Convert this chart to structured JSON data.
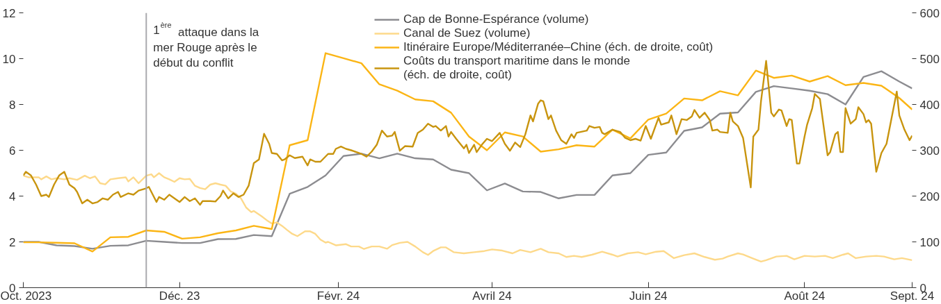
{
  "chart_data": {
    "type": "line",
    "xlim": [
      "2023-10-01",
      "2024-09-12"
    ],
    "xticks": [
      {
        "value": "2023-10-01",
        "label": "Oct. 2023"
      },
      {
        "value": "2023-12-01",
        "label": "Déc. 23"
      },
      {
        "value": "2024-02-01",
        "label": "Févr. 24"
      },
      {
        "value": "2024-04-01",
        "label": "Avril 24"
      },
      {
        "value": "2024-06-01",
        "label": "Juin 24"
      },
      {
        "value": "2024-08-01",
        "label": "Août 24"
      },
      {
        "value": "2024-09-12",
        "label": "Sept. 24"
      }
    ],
    "ylim": [
      0,
      12
    ],
    "yticks": [
      0,
      2,
      4,
      6,
      8,
      10,
      12
    ],
    "y2lim": [
      0,
      600
    ],
    "y2ticks": [
      0,
      100,
      200,
      300,
      400,
      500,
      600
    ],
    "grid": false,
    "legend": "top",
    "line_style": "solid",
    "ref_lines": [
      {
        "axis": "x",
        "value": "2023-11-18",
        "label": "1$^{ère}$ attaque dans la\nmer Rouge après le\ndébut du conflit",
        "color": "#a9a9ad"
      }
    ],
    "series": [
      {
        "name": "Cap de Bonne-Espérance (volume)",
        "color": "#8c8c90",
        "x": [
          "2023-10-01",
          "2023-10-07",
          "2023-10-14",
          "2023-10-21",
          "2023-10-28",
          "2023-11-04",
          "2023-11-11",
          "2023-11-18",
          "2023-11-25",
          "2023-12-02",
          "2023-12-09",
          "2023-12-16",
          "2023-12-23",
          "2023-12-30",
          "2024-01-06",
          "2024-01-13",
          "2024-01-20",
          "2024-01-27",
          "2024-02-03",
          "2024-02-10",
          "2024-02-17",
          "2024-02-24",
          "2024-03-02",
          "2024-03-09",
          "2024-03-16",
          "2024-03-23",
          "2024-03-30",
          "2024-04-06",
          "2024-04-13",
          "2024-04-20",
          "2024-04-27",
          "2024-05-04",
          "2024-05-11",
          "2024-05-18",
          "2024-05-25",
          "2024-06-01",
          "2024-06-08",
          "2024-06-15",
          "2024-06-22",
          "2024-06-29",
          "2024-07-06",
          "2024-07-13",
          "2024-07-20",
          "2024-07-27",
          "2024-08-03",
          "2024-08-10",
          "2024-08-17",
          "2024-08-24",
          "2024-08-31",
          "2024-09-07",
          "2024-09-12"
        ],
        "values": [
          2.0,
          2.0,
          1.85,
          1.82,
          1.7,
          1.83,
          1.85,
          2.05,
          2.0,
          1.95,
          1.95,
          2.12,
          2.13,
          2.3,
          2.25,
          4.1,
          4.4,
          4.9,
          5.75,
          5.85,
          5.65,
          5.85,
          5.65,
          5.6,
          5.15,
          5.0,
          4.25,
          4.55,
          4.2,
          4.18,
          3.9,
          4.05,
          4.05,
          4.9,
          5.0,
          5.8,
          5.9,
          6.85,
          7.0,
          7.6,
          7.65,
          8.55,
          8.8,
          8.7,
          8.6,
          8.45,
          8.0,
          9.2,
          9.45,
          9.0,
          8.7
        ]
      },
      {
        "name": "Canal de Suez (volume)",
        "color": "#fdd98a",
        "x": [
          "2023-10-01",
          "2023-10-03",
          "2023-10-07",
          "2023-10-08",
          "2023-10-10",
          "2023-10-12",
          "2023-10-14",
          "2023-10-17",
          "2023-10-19",
          "2023-10-22",
          "2023-10-25",
          "2023-10-27",
          "2023-10-29",
          "2023-10-31",
          "2023-11-02",
          "2023-11-04",
          "2023-11-07",
          "2023-11-10",
          "2023-11-11",
          "2023-11-13",
          "2023-11-15",
          "2023-11-18",
          "2023-11-20",
          "2023-11-21",
          "2023-11-23",
          "2023-11-25",
          "2023-11-27",
          "2023-11-29",
          "2023-12-01",
          "2023-12-03",
          "2023-12-05",
          "2023-12-07",
          "2023-12-09",
          "2023-12-11",
          "2023-12-13",
          "2023-12-15",
          "2023-12-17",
          "2023-12-19",
          "2023-12-21",
          "2023-12-23",
          "2023-12-25",
          "2023-12-27",
          "2023-12-29",
          "2023-12-30",
          "2024-01-02",
          "2024-01-04",
          "2024-01-06",
          "2024-01-08",
          "2024-01-10",
          "2024-01-12",
          "2024-01-14",
          "2024-01-16",
          "2024-01-19",
          "2024-01-21",
          "2024-01-23",
          "2024-01-25",
          "2024-01-27",
          "2024-01-28",
          "2024-01-31",
          "2024-02-04",
          "2024-02-06",
          "2024-02-09",
          "2024-02-11",
          "2024-02-14",
          "2024-02-17",
          "2024-02-20",
          "2024-02-22",
          "2024-02-25",
          "2024-02-28",
          "2024-03-02",
          "2024-03-05",
          "2024-03-07",
          "2024-03-09",
          "2024-03-12",
          "2024-03-14",
          "2024-03-17",
          "2024-03-21",
          "2024-03-25",
          "2024-03-29",
          "2024-04-01",
          "2024-04-05",
          "2024-04-09",
          "2024-04-12",
          "2024-04-16",
          "2024-04-20",
          "2024-04-23",
          "2024-04-27",
          "2024-04-30",
          "2024-05-03",
          "2024-05-06",
          "2024-05-10",
          "2024-05-14",
          "2024-05-18",
          "2024-05-20",
          "2024-05-24",
          "2024-05-28",
          "2024-05-31",
          "2024-06-04",
          "2024-06-07",
          "2024-06-11",
          "2024-06-15",
          "2024-06-19",
          "2024-06-23",
          "2024-06-27",
          "2024-06-30",
          "2024-07-02",
          "2024-07-06",
          "2024-07-08",
          "2024-07-12",
          "2024-07-15",
          "2024-07-17",
          "2024-07-21",
          "2024-07-25",
          "2024-07-28",
          "2024-08-01",
          "2024-08-05",
          "2024-08-09",
          "2024-08-12",
          "2024-08-16",
          "2024-08-18",
          "2024-08-21",
          "2024-08-25",
          "2024-08-29",
          "2024-09-01",
          "2024-09-05",
          "2024-09-08",
          "2024-09-12"
        ],
        "values": [
          4.89,
          4.82,
          4.82,
          4.73,
          4.86,
          4.73,
          4.78,
          4.73,
          4.78,
          4.71,
          4.89,
          4.78,
          4.86,
          4.56,
          4.51,
          4.73,
          4.78,
          4.82,
          4.64,
          4.82,
          4.56,
          4.89,
          4.95,
          4.82,
          5.0,
          4.82,
          4.73,
          4.62,
          4.78,
          4.73,
          4.75,
          4.45,
          4.35,
          4.3,
          4.5,
          4.56,
          4.5,
          4.45,
          4.2,
          4.1,
          3.9,
          3.5,
          3.3,
          3.35,
          3.12,
          2.95,
          2.8,
          2.85,
          2.7,
          2.52,
          2.35,
          2.25,
          2.46,
          2.46,
          2.35,
          2.1,
          1.97,
          2.0,
          1.85,
          1.9,
          1.8,
          1.8,
          1.69,
          1.8,
          1.8,
          1.7,
          1.86,
          1.96,
          2.0,
          1.8,
          1.55,
          1.43,
          1.6,
          1.76,
          1.76,
          1.55,
          1.5,
          1.55,
          1.6,
          1.67,
          1.62,
          1.5,
          1.65,
          1.55,
          1.7,
          1.55,
          1.5,
          1.34,
          1.39,
          1.34,
          1.44,
          1.57,
          1.44,
          1.36,
          1.5,
          1.55,
          1.46,
          1.57,
          1.6,
          1.29,
          1.42,
          1.5,
          1.34,
          1.22,
          1.27,
          1.36,
          1.5,
          1.45,
          1.27,
          1.14,
          1.2,
          1.36,
          1.39,
          1.24,
          1.39,
          1.36,
          1.39,
          1.29,
          1.44,
          1.5,
          1.29,
          1.36,
          1.39,
          1.36,
          1.24,
          1.29,
          1.2
        ]
      },
      {
        "name": "Itinéraire Europe/Méditerranée–Chine (éch. de droite, coût)",
        "color": "#fbb515",
        "axis": "y2",
        "x": [
          "2023-10-01",
          "2023-10-07",
          "2023-10-14",
          "2023-10-21",
          "2023-10-28",
          "2023-11-04",
          "2023-11-11",
          "2023-11-18",
          "2023-11-25",
          "2023-12-02",
          "2023-12-09",
          "2023-12-16",
          "2023-12-23",
          "2023-12-30",
          "2024-01-06",
          "2024-01-13",
          "2024-01-20",
          "2024-01-27",
          "2024-02-03",
          "2024-02-10",
          "2024-02-17",
          "2024-02-24",
          "2024-03-02",
          "2024-03-09",
          "2024-03-16",
          "2024-03-23",
          "2024-03-30",
          "2024-04-06",
          "2024-04-13",
          "2024-04-20",
          "2024-04-27",
          "2024-05-04",
          "2024-05-11",
          "2024-05-18",
          "2024-05-25",
          "2024-06-01",
          "2024-06-08",
          "2024-06-15",
          "2024-06-22",
          "2024-06-29",
          "2024-07-06",
          "2024-07-13",
          "2024-07-20",
          "2024-07-27",
          "2024-08-03",
          "2024-08-10",
          "2024-08-17",
          "2024-08-24",
          "2024-08-31",
          "2024-09-07",
          "2024-09-12"
        ],
        "values": [
          99,
          99,
          98,
          97,
          79,
          110,
          111,
          125,
          122,
          107,
          110,
          119,
          125,
          135,
          128,
          311,
          322,
          512,
          501,
          490,
          444,
          430,
          411,
          407,
          382,
          330,
          300,
          339,
          330,
          297,
          302,
          311,
          308,
          345,
          326,
          367,
          380,
          413,
          409,
          429,
          420,
          474,
          458,
          463,
          450,
          462,
          442,
          447,
          441,
          414,
          389
        ]
      },
      {
        "name": "Coûts du transport maritime dans le monde\n(éch. de droite, coût)",
        "color": "#c8940e",
        "axis": "y2",
        "x": [
          "2023-10-01",
          "2023-10-02",
          "2023-10-04",
          "2023-10-06",
          "2023-10-08",
          "2023-10-10",
          "2023-10-11",
          "2023-10-13",
          "2023-10-15",
          "2023-10-17",
          "2023-10-19",
          "2023-10-21",
          "2023-10-22",
          "2023-10-24",
          "2023-10-26",
          "2023-10-28",
          "2023-10-30",
          "2023-11-01",
          "2023-11-03",
          "2023-11-05",
          "2023-11-07",
          "2023-11-08",
          "2023-11-11",
          "2023-11-13",
          "2023-11-15",
          "2023-11-18",
          "2023-11-19",
          "2023-11-20",
          "2023-11-22",
          "2023-11-23",
          "2023-11-25",
          "2023-11-27",
          "2023-11-29",
          "2023-12-01",
          "2023-12-03",
          "2023-12-05",
          "2023-12-07",
          "2023-12-09",
          "2023-12-10",
          "2023-12-13",
          "2023-12-15",
          "2023-12-17",
          "2023-12-18",
          "2023-12-20",
          "2023-12-22",
          "2023-12-24",
          "2023-12-26",
          "2023-12-28",
          "2023-12-30",
          "2024-01-01",
          "2024-01-02",
          "2024-01-03",
          "2024-01-05",
          "2024-01-06",
          "2024-01-08",
          "2024-01-10",
          "2024-01-11",
          "2024-01-13",
          "2024-01-15",
          "2024-01-18",
          "2024-01-20",
          "2024-01-21",
          "2024-01-23",
          "2024-01-25",
          "2024-01-28",
          "2024-01-30",
          "2024-01-31",
          "2024-02-02",
          "2024-02-04",
          "2024-02-06",
          "2024-02-09",
          "2024-02-10",
          "2024-02-12",
          "2024-02-14",
          "2024-02-16",
          "2024-02-18",
          "2024-02-20",
          "2024-02-22",
          "2024-02-23",
          "2024-02-25",
          "2024-02-27",
          "2024-03-01",
          "2024-03-03",
          "2024-03-05",
          "2024-03-07",
          "2024-03-09",
          "2024-03-10",
          "2024-03-12",
          "2024-03-14",
          "2024-03-15",
          "2024-03-16",
          "2024-03-18",
          "2024-03-21",
          "2024-03-22",
          "2024-03-23",
          "2024-03-25",
          "2024-03-26",
          "2024-03-28",
          "2024-03-30",
          "2024-04-01",
          "2024-04-04",
          "2024-04-06",
          "2024-04-08",
          "2024-04-10",
          "2024-04-12",
          "2024-04-14",
          "2024-04-16",
          "2024-04-17",
          "2024-04-19",
          "2024-04-20",
          "2024-04-21",
          "2024-04-23",
          "2024-04-24",
          "2024-04-26",
          "2024-04-28",
          "2024-04-30",
          "2024-05-02",
          "2024-05-03",
          "2024-05-04",
          "2024-05-08",
          "2024-05-09",
          "2024-05-11",
          "2024-05-13",
          "2024-05-14",
          "2024-05-15",
          "2024-05-18",
          "2024-05-21",
          "2024-05-23",
          "2024-05-25",
          "2024-05-27",
          "2024-05-29",
          "2024-05-31",
          "2024-06-02",
          "2024-06-05",
          "2024-06-06",
          "2024-06-09",
          "2024-06-10",
          "2024-06-11",
          "2024-06-12",
          "2024-06-14",
          "2024-06-16",
          "2024-06-18",
          "2024-06-19",
          "2024-06-21",
          "2024-06-23",
          "2024-06-25",
          "2024-06-26",
          "2024-06-28",
          "2024-06-29",
          "2024-07-02",
          "2024-07-03",
          "2024-07-04",
          "2024-07-06",
          "2024-07-08",
          "2024-07-11",
          "2024-07-12",
          "2024-07-14",
          "2024-07-15",
          "2024-07-17",
          "2024-07-19",
          "2024-07-20",
          "2024-07-22",
          "2024-07-23",
          "2024-07-25",
          "2024-07-26",
          "2024-07-27",
          "2024-07-29",
          "2024-07-30",
          "2024-08-01",
          "2024-08-02",
          "2024-08-04",
          "2024-08-05",
          "2024-08-07",
          "2024-08-10",
          "2024-08-11",
          "2024-08-13",
          "2024-08-14",
          "2024-08-15",
          "2024-08-16",
          "2024-08-17",
          "2024-08-19",
          "2024-08-21",
          "2024-08-22",
          "2024-08-24",
          "2024-08-25",
          "2024-08-26",
          "2024-08-27",
          "2024-08-29",
          "2024-08-31",
          "2024-09-02",
          "2024-09-06",
          "2024-09-07",
          "2024-09-09",
          "2024-09-11",
          "2024-09-12"
        ],
        "values": [
          245,
          253,
          245,
          225,
          200,
          203,
          198,
          225,
          245,
          253,
          225,
          217,
          209,
          184,
          192,
          184,
          187,
          195,
          192,
          203,
          209,
          198,
          206,
          203,
          212,
          217,
          220,
          209,
          187,
          198,
          192,
          203,
          195,
          187,
          198,
          189,
          195,
          181,
          189,
          189,
          188,
          200,
          212,
          195,
          206,
          198,
          203,
          223,
          272,
          280,
          308,
          336,
          314,
          294,
          292,
          278,
          280,
          289,
          283,
          286,
          267,
          280,
          275,
          275,
          292,
          292,
          303,
          308,
          303,
          300,
          294,
          292,
          286,
          297,
          312,
          343,
          330,
          332,
          340,
          299,
          309,
          308,
          338,
          345,
          358,
          351,
          353,
          343,
          353,
          330,
          340,
          325,
          304,
          312,
          294,
          312,
          296,
          312,
          325,
          320,
          338,
          314,
          299,
          317,
          307,
          335,
          376,
          363,
          402,
          409,
          407,
          368,
          376,
          343,
          322,
          314,
          335,
          327,
          338,
          343,
          353,
          349,
          351,
          338,
          335,
          345,
          340,
          327,
          322,
          325,
          321,
          353,
          325,
          371,
          356,
          361,
          376,
          356,
          335,
          368,
          366,
          374,
          388,
          371,
          382,
          366,
          343,
          345,
          340,
          338,
          382,
          363,
          353,
          327,
          219,
          330,
          345,
          407,
          495,
          382,
          374,
          389,
          387,
          353,
          368,
          366,
          271,
          271,
          330,
          356,
          392,
          423,
          412,
          289,
          296,
          335,
          340,
          296,
          296,
          392,
          358,
          368,
          394,
          379,
          361,
          366,
          358,
          253,
          294,
          314,
          428,
          376,
          345,
          322,
          332
        ]
      }
    ]
  }
}
